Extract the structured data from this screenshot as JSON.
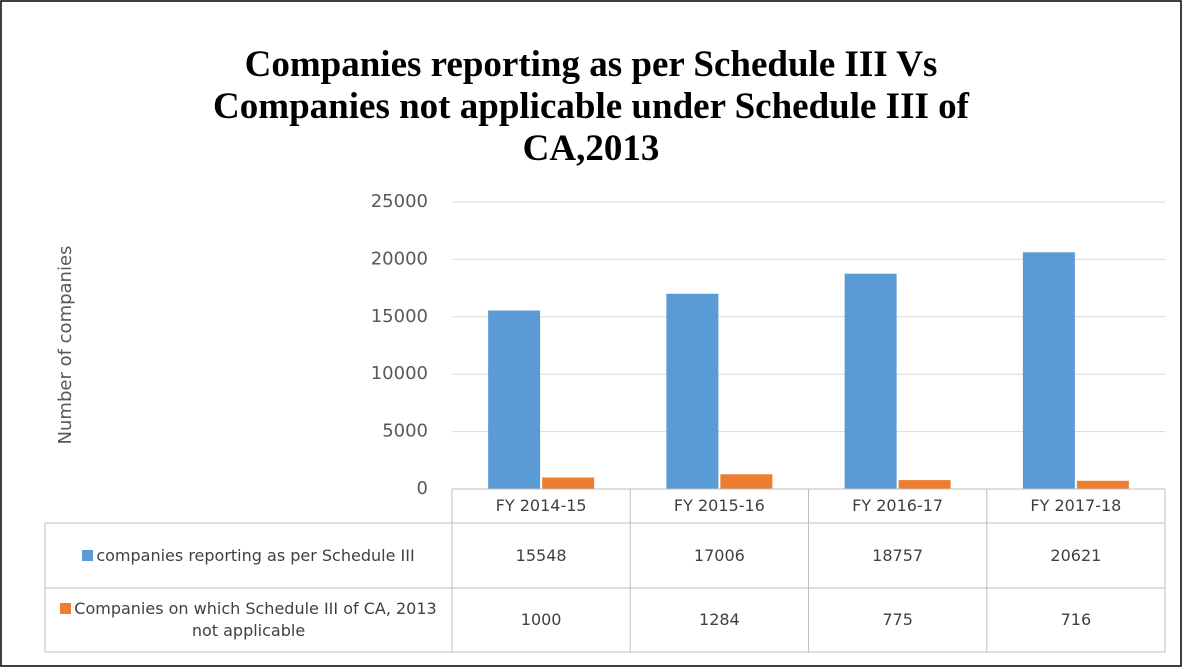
{
  "chart_data": {
    "type": "bar",
    "title": "Companies reporting as per Schedule III Vs Companies not applicable under Schedule III of CA,2013",
    "y_label": "Number of companies",
    "categories": [
      "FY 2014-15",
      "FY 2015-16",
      "FY 2016-17",
      "FY 2017-18"
    ],
    "series": [
      {
        "name": "companies reporting as per Schedule III",
        "color": "#5b9bd5",
        "values": [
          15548,
          17006,
          18757,
          20621
        ]
      },
      {
        "name": "Companies on which Schedule III of CA, 2013 not applicable",
        "color": "#ed7d31",
        "values": [
          1000,
          1284,
          775,
          716
        ]
      }
    ],
    "ylim": [
      0,
      25000
    ],
    "yticks": [
      0,
      5000,
      10000,
      15000,
      20000,
      25000
    ],
    "grid": true
  }
}
